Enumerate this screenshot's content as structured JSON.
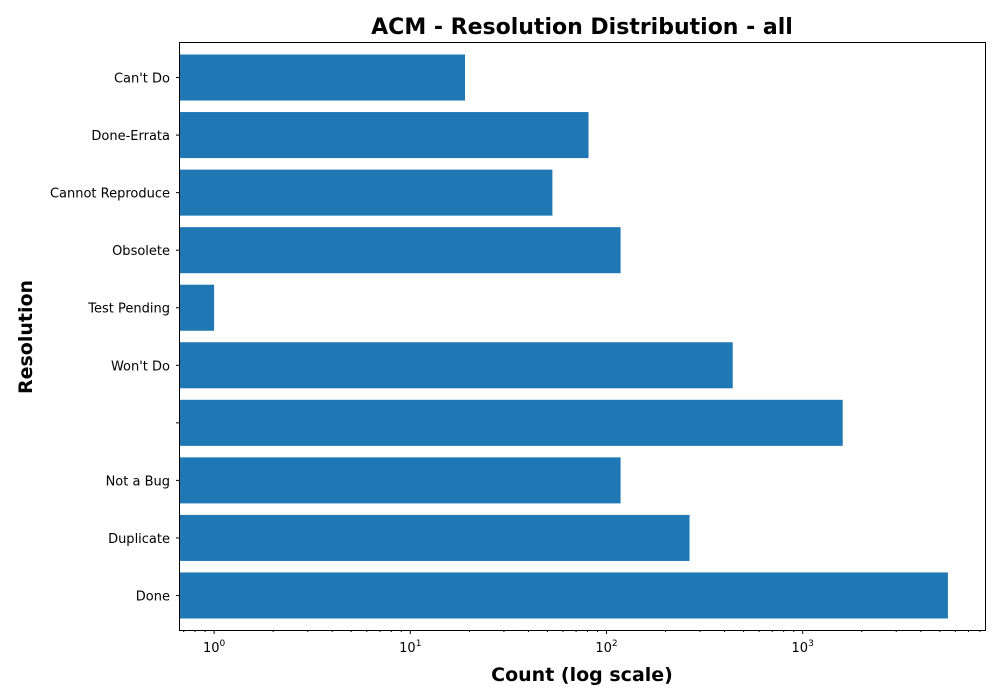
{
  "chart_data": {
    "type": "bar",
    "orientation": "horizontal",
    "title": "ACM - Resolution Distribution - all",
    "xlabel": "Count (log scale)",
    "ylabel": "Resolution",
    "x_scale": "log",
    "xlim": [
      0.67,
      8500
    ],
    "x_ticks": [
      {
        "base": "10",
        "exp": "0",
        "value": 1
      },
      {
        "base": "10",
        "exp": "1",
        "value": 10
      },
      {
        "base": "10",
        "exp": "2",
        "value": 100
      },
      {
        "base": "10",
        "exp": "3",
        "value": 1000
      }
    ],
    "categories": [
      "Done",
      "Duplicate",
      "Not a Bug",
      "",
      "Won't Do",
      "Test Pending",
      "Obsolete",
      "Cannot Reproduce",
      "Done-Errata",
      "Can't Do"
    ],
    "values": [
      5500,
      265,
      118,
      1600,
      440,
      1,
      118,
      53,
      81,
      19
    ],
    "bar_color": "#1f77b4",
    "grid": false,
    "legend": "none"
  }
}
